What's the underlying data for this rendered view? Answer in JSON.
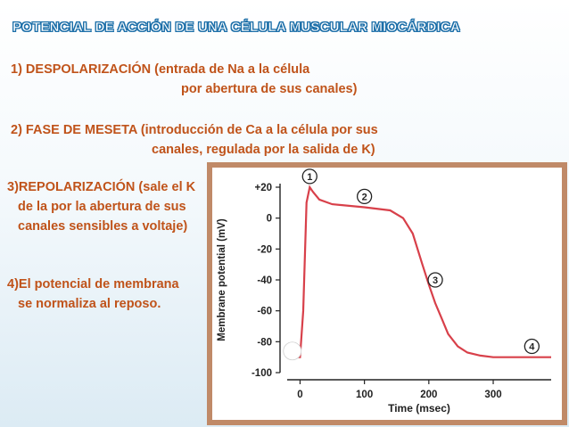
{
  "title": "POTENCIAL DE ACCIÓN DE UNA CÉLULA MUSCULAR MIOCÁRDICA",
  "phases": {
    "p1_line1": "1)    DESPOLARIZACIÓN (entrada de Na a la célula",
    "p1_line2": "por abertura de sus canales)",
    "p2_line1": "2)    FASE DE MESETA (introducción de Ca a la célula por sus",
    "p2_line2": "canales, regulada por la salida de K)",
    "p3_line1": "3)REPOLARIZACIÓN (sale el K",
    "p3_line2": "de la por la abertura de sus",
    "p3_line3": "canales  sensibles a voltaje)",
    "p4_line1": "4)El potencial de membrana",
    "p4_line2": "se normaliza al reposo."
  },
  "colors": {
    "title_outline": "#1b6ea8",
    "body_text": "#c0531a",
    "curve": "#d8404a",
    "frame": "#c08a68"
  },
  "chart_data": {
    "type": "line",
    "xlabel": "Time (msec)",
    "ylabel": "Membrane potential (mV)",
    "xlim": [
      -20,
      390
    ],
    "ylim": [
      -100,
      20
    ],
    "xticks": [
      0,
      100,
      200,
      300
    ],
    "xtick_labels": [
      "0",
      "100",
      "200",
      "300"
    ],
    "yticks": [
      20,
      0,
      -20,
      -40,
      -60,
      -80,
      -100
    ],
    "ytick_labels": [
      "+20",
      "0",
      "-20",
      "-40",
      "-60",
      "-80",
      "-100"
    ],
    "grid": false,
    "series": [
      {
        "x": [
          -20,
          0,
          5,
          10,
          15,
          20,
          30,
          50,
          100,
          140,
          160,
          175,
          190,
          200,
          210,
          220,
          230,
          245,
          260,
          280,
          300,
          330,
          360,
          390
        ],
        "y": [
          -90,
          -90,
          -60,
          10,
          20,
          17,
          12,
          9,
          7,
          5,
          0,
          -10,
          -30,
          -43,
          -55,
          -65,
          -75,
          -83,
          -87,
          -89,
          -90,
          -90,
          -90,
          -90
        ]
      }
    ],
    "annotations": [
      {
        "label": "1",
        "x": 15,
        "y": 27
      },
      {
        "label": "2",
        "x": 100,
        "y": 14
      },
      {
        "label": "3",
        "x": 210,
        "y": -40
      },
      {
        "label": "4",
        "x": 360,
        "y": -83
      }
    ]
  }
}
